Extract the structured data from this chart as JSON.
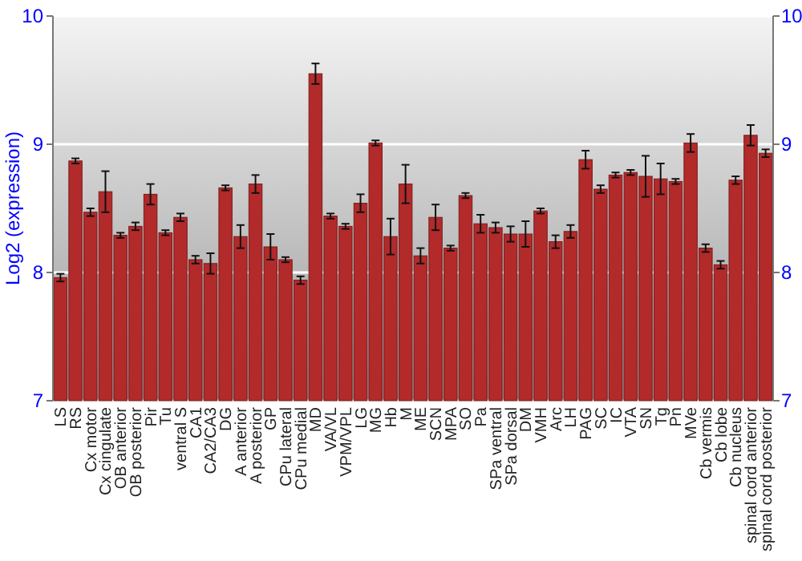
{
  "chart_data": {
    "type": "bar",
    "ylabel": "Log2 (expression)",
    "categories": [
      "LS",
      "RS",
      "Cx motor",
      "Cx cingulate",
      "OB anterior",
      "OB posterior",
      "Pir",
      "Tu",
      "ventral S",
      "CA1",
      "CA2/CA3",
      "DG",
      "A anterior",
      "A posterior",
      "GP",
      "CPu lateral",
      "CPu medial",
      "MD",
      "VA/VL",
      "VPM/VPL",
      "LG",
      "MG",
      "Hb",
      "M",
      "ME",
      "SCN",
      "MPA",
      "SO",
      "Pa",
      "SPa ventral",
      "SPa dorsal",
      "DM",
      "VMH",
      "Arc",
      "LH",
      "PAG",
      "SC",
      "IC",
      "VTA",
      "SN",
      "Tg",
      "Pn",
      "MVe",
      "Cb vermis",
      "Cb lobe",
      "Cb nucleus",
      "spinal cord anterior",
      "spinal cord posterior"
    ],
    "values": [
      7.96,
      8.87,
      8.47,
      8.63,
      8.29,
      8.36,
      8.61,
      8.31,
      8.43,
      8.1,
      8.07,
      8.66,
      8.28,
      8.69,
      8.2,
      8.1,
      7.94,
      9.55,
      8.44,
      8.36,
      8.54,
      9.01,
      8.28,
      8.69,
      8.13,
      8.43,
      8.19,
      8.6,
      8.38,
      8.35,
      8.3,
      8.3,
      8.48,
      8.24,
      8.32,
      8.88,
      8.65,
      8.76,
      8.78,
      8.75,
      8.73,
      8.71,
      9.01,
      8.19,
      8.06,
      8.72,
      9.07,
      8.93
    ],
    "errors": [
      0.03,
      0.02,
      0.03,
      0.16,
      0.02,
      0.03,
      0.08,
      0.02,
      0.03,
      0.03,
      0.08,
      0.02,
      0.09,
      0.07,
      0.1,
      0.02,
      0.03,
      0.08,
      0.02,
      0.02,
      0.07,
      0.02,
      0.14,
      0.15,
      0.06,
      0.1,
      0.02,
      0.02,
      0.07,
      0.04,
      0.06,
      0.1,
      0.02,
      0.05,
      0.05,
      0.07,
      0.03,
      0.02,
      0.02,
      0.16,
      0.12,
      0.02,
      0.07,
      0.03,
      0.03,
      0.03,
      0.08,
      0.03
    ],
    "color": "#b22a2a",
    "ylim": [
      7,
      10
    ],
    "yticks": [
      7,
      8,
      9,
      10
    ],
    "y2lim": [
      7,
      10
    ],
    "y2ticks": [
      7,
      8,
      9,
      10
    ],
    "grid": "y"
  }
}
